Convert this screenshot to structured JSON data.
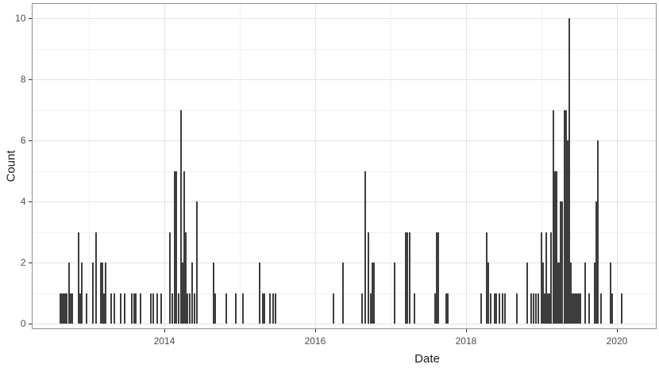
{
  "chart_title": "",
  "axes": {
    "x": {
      "label": "Date",
      "tick_labels": [
        "2014",
        "2016",
        "2018",
        "2020"
      ],
      "tick_years": [
        2014,
        2016,
        2018,
        2020
      ],
      "minor_years": [
        2013,
        2015,
        2017,
        2019
      ]
    },
    "y": {
      "label": "Count",
      "tick_labels": [
        "0",
        "2",
        "4",
        "6",
        "8",
        "10"
      ],
      "tick_values": [
        0,
        2,
        4,
        6,
        8,
        10
      ],
      "minor_values": [
        1,
        3,
        5,
        7,
        9
      ]
    }
  },
  "colors": {
    "bar": "#3d3d3d",
    "panel_border": "#8f8f8f",
    "grid_major": "#e3e3e3",
    "grid_minor": "#f1f1f1",
    "tick_text": "#4d4d4d",
    "title_text": "#1a1a1a",
    "background": "#ffffff"
  },
  "chart_data": {
    "type": "bar",
    "title": "",
    "xlabel": "Date",
    "ylabel": "Count",
    "xlim": [
      2012.24,
      2020.52
    ],
    "ylim": [
      0,
      10.5
    ],
    "grid": true,
    "legend": "none",
    "description": "Daily event counts over time; thin vertical bars (decimal-year, count)",
    "points": [
      [
        2012.621,
        1
      ],
      [
        2012.642,
        1
      ],
      [
        2012.663,
        1
      ],
      [
        2012.684,
        1
      ],
      [
        2012.705,
        1
      ],
      [
        2012.737,
        2
      ],
      [
        2012.758,
        1
      ],
      [
        2012.779,
        1
      ],
      [
        2012.863,
        3
      ],
      [
        2012.884,
        1
      ],
      [
        2012.905,
        2
      ],
      [
        2012.968,
        1
      ],
      [
        2013.053,
        2
      ],
      [
        2013.095,
        3
      ],
      [
        2013.158,
        2
      ],
      [
        2013.179,
        2
      ],
      [
        2013.2,
        1
      ],
      [
        2013.221,
        2
      ],
      [
        2013.295,
        1
      ],
      [
        2013.337,
        1
      ],
      [
        2013.421,
        1
      ],
      [
        2013.474,
        1
      ],
      [
        2013.568,
        1
      ],
      [
        2013.6,
        1
      ],
      [
        2013.621,
        1
      ],
      [
        2013.684,
        1
      ],
      [
        2013.821,
        1
      ],
      [
        2013.853,
        1
      ],
      [
        2013.905,
        1
      ],
      [
        2013.958,
        1
      ],
      [
        2014.074,
        3
      ],
      [
        2014.105,
        1
      ],
      [
        2014.137,
        5
      ],
      [
        2014.158,
        5
      ],
      [
        2014.189,
        1
      ],
      [
        2014.221,
        7
      ],
      [
        2014.242,
        2
      ],
      [
        2014.263,
        5
      ],
      [
        2014.284,
        3
      ],
      [
        2014.305,
        1
      ],
      [
        2014.337,
        1
      ],
      [
        2014.368,
        2
      ],
      [
        2014.4,
        1
      ],
      [
        2014.432,
        4
      ],
      [
        2014.653,
        2
      ],
      [
        2014.674,
        1
      ],
      [
        2014.821,
        1
      ],
      [
        2014.947,
        1
      ],
      [
        2015.042,
        1
      ],
      [
        2015.263,
        2
      ],
      [
        2015.305,
        1
      ],
      [
        2015.326,
        1
      ],
      [
        2015.4,
        1
      ],
      [
        2015.442,
        1
      ],
      [
        2015.474,
        1
      ],
      [
        2016.242,
        1
      ],
      [
        2016.368,
        2
      ],
      [
        2016.621,
        1
      ],
      [
        2016.663,
        5
      ],
      [
        2016.705,
        3
      ],
      [
        2016.737,
        1
      ],
      [
        2016.758,
        2
      ],
      [
        2016.779,
        2
      ],
      [
        2017.053,
        2
      ],
      [
        2017.2,
        3
      ],
      [
        2017.221,
        3
      ],
      [
        2017.253,
        3
      ],
      [
        2017.316,
        1
      ],
      [
        2017.589,
        1
      ],
      [
        2017.611,
        3
      ],
      [
        2017.632,
        3
      ],
      [
        2017.737,
        1
      ],
      [
        2017.758,
        1
      ],
      [
        2018.2,
        1
      ],
      [
        2018.274,
        3
      ],
      [
        2018.295,
        2
      ],
      [
        2018.326,
        1
      ],
      [
        2018.379,
        1
      ],
      [
        2018.4,
        1
      ],
      [
        2018.442,
        1
      ],
      [
        2018.484,
        1
      ],
      [
        2018.516,
        1
      ],
      [
        2018.674,
        1
      ],
      [
        2018.811,
        2
      ],
      [
        2018.863,
        1
      ],
      [
        2018.895,
        1
      ],
      [
        2018.926,
        1
      ],
      [
        2018.958,
        1
      ],
      [
        2019.0,
        3
      ],
      [
        2019.021,
        2
      ],
      [
        2019.042,
        1
      ],
      [
        2019.063,
        3
      ],
      [
        2019.084,
        1
      ],
      [
        2019.105,
        1
      ],
      [
        2019.126,
        3
      ],
      [
        2019.158,
        7
      ],
      [
        2019.179,
        5
      ],
      [
        2019.2,
        5
      ],
      [
        2019.221,
        2
      ],
      [
        2019.242,
        2
      ],
      [
        2019.253,
        4
      ],
      [
        2019.274,
        4
      ],
      [
        2019.305,
        7
      ],
      [
        2019.326,
        7
      ],
      [
        2019.347,
        6
      ],
      [
        2019.368,
        10
      ],
      [
        2019.389,
        2
      ],
      [
        2019.411,
        1
      ],
      [
        2019.432,
        1
      ],
      [
        2019.453,
        1
      ],
      [
        2019.474,
        1
      ],
      [
        2019.495,
        1
      ],
      [
        2019.516,
        1
      ],
      [
        2019.579,
        2
      ],
      [
        2019.632,
        1
      ],
      [
        2019.705,
        2
      ],
      [
        2019.726,
        4
      ],
      [
        2019.747,
        6
      ],
      [
        2019.789,
        1
      ],
      [
        2019.916,
        2
      ],
      [
        2019.937,
        1
      ],
      [
        2020.063,
        1
      ]
    ]
  }
}
